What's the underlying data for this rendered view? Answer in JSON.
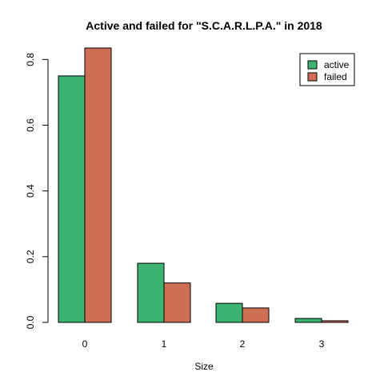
{
  "chart_data": {
    "type": "bar",
    "title": "Active and failed for \"S.C.A.R.L.P.A.\" in 2018",
    "xlabel": "Size",
    "ylabel": "",
    "categories": [
      "0",
      "1",
      "2",
      "3"
    ],
    "series": [
      {
        "name": "active",
        "color": "#3CB371",
        "values": [
          0.75,
          0.18,
          0.058,
          0.012
        ]
      },
      {
        "name": "failed",
        "color": "#CD6E55",
        "values": [
          0.835,
          0.12,
          0.044,
          0.005
        ]
      }
    ],
    "ylim": [
      0,
      0.835
    ],
    "yticks": [
      "0.0",
      "0.2",
      "0.4",
      "0.6",
      "0.8"
    ],
    "ytick_values": [
      0,
      0.2,
      0.4,
      0.6,
      0.8
    ],
    "legend_position": "top-right",
    "grid": false
  }
}
